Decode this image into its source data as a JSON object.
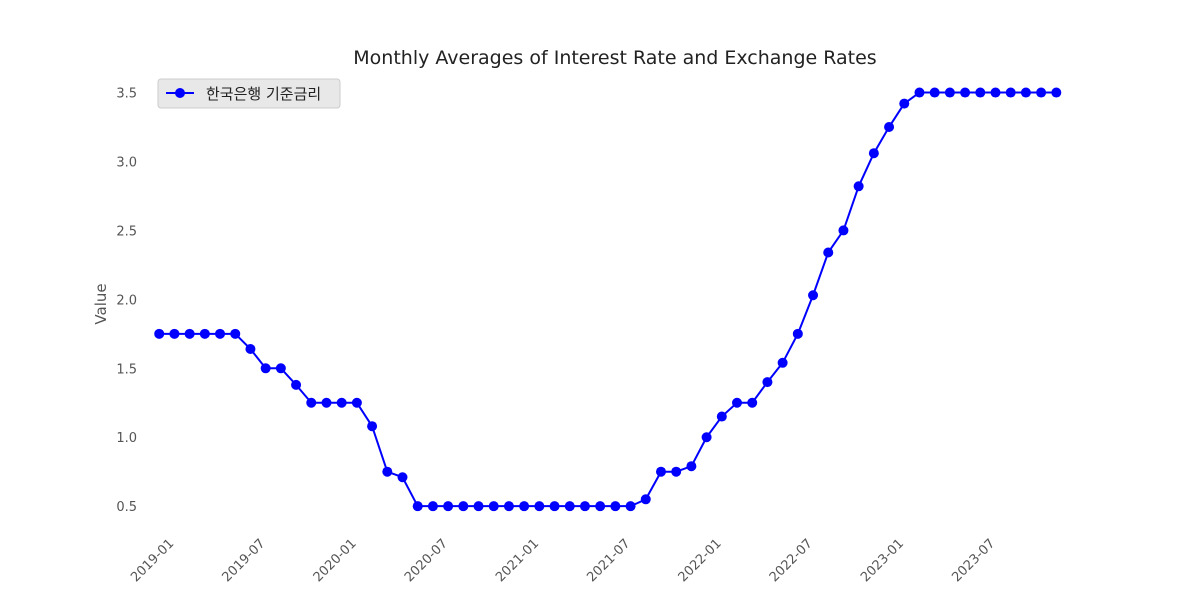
{
  "chart_data": {
    "type": "line",
    "title": "Monthly Averages of Interest Rate and Exchange Rates",
    "xlabel": "",
    "ylabel": "Value",
    "ylim": [
      0.32,
      3.62
    ],
    "xlim": [
      "2018-11-13",
      "2023-12-18"
    ],
    "grid": false,
    "legend_position": "top-left",
    "y_ticks": [
      "0.5",
      "1.0",
      "1.5",
      "2.0",
      "2.5",
      "3.0",
      "3.5"
    ],
    "x_ticks": [
      "2019-01",
      "2019-07",
      "2020-01",
      "2020-07",
      "2021-01",
      "2021-07",
      "2022-01",
      "2022-07",
      "2023-01",
      "2023-07"
    ],
    "colors": {
      "series": "#0000ff",
      "legend_bg": "#e8e8e8",
      "legend_border": "#cccccc"
    },
    "series": [
      {
        "name": "한국은행 기준금리",
        "x": [
          "2018-12",
          "2019-01",
          "2019-02",
          "2019-03",
          "2019-04",
          "2019-05",
          "2019-06",
          "2019-07",
          "2019-08",
          "2019-09",
          "2019-10",
          "2019-11",
          "2019-12",
          "2020-01",
          "2020-02",
          "2020-03",
          "2020-04",
          "2020-05",
          "2020-06",
          "2020-07",
          "2020-08",
          "2020-09",
          "2020-10",
          "2020-11",
          "2020-12",
          "2021-01",
          "2021-02",
          "2021-03",
          "2021-04",
          "2021-05",
          "2021-06",
          "2021-07",
          "2021-08",
          "2021-09",
          "2021-10",
          "2021-11",
          "2021-12",
          "2022-01",
          "2022-02",
          "2022-03",
          "2022-04",
          "2022-05",
          "2022-06",
          "2022-07",
          "2022-08",
          "2022-09",
          "2022-10",
          "2022-11",
          "2022-12",
          "2023-01",
          "2023-02",
          "2023-03",
          "2023-04",
          "2023-05",
          "2023-06",
          "2023-07",
          "2023-08",
          "2023-09",
          "2023-10",
          "2023-11"
        ],
        "values": [
          1.75,
          1.75,
          1.75,
          1.75,
          1.75,
          1.75,
          1.64,
          1.5,
          1.5,
          1.38,
          1.25,
          1.25,
          1.25,
          1.25,
          1.08,
          0.75,
          0.71,
          0.5,
          0.5,
          0.5,
          0.5,
          0.5,
          0.5,
          0.5,
          0.5,
          0.5,
          0.5,
          0.5,
          0.5,
          0.5,
          0.5,
          0.5,
          0.55,
          0.75,
          0.75,
          0.79,
          1.0,
          1.15,
          1.25,
          1.25,
          1.4,
          1.54,
          1.75,
          2.03,
          2.34,
          2.5,
          2.82,
          3.06,
          3.25,
          3.42,
          3.5,
          3.5,
          3.5,
          3.5,
          3.5,
          3.5,
          3.5,
          3.5,
          3.5,
          3.5
        ]
      }
    ]
  }
}
